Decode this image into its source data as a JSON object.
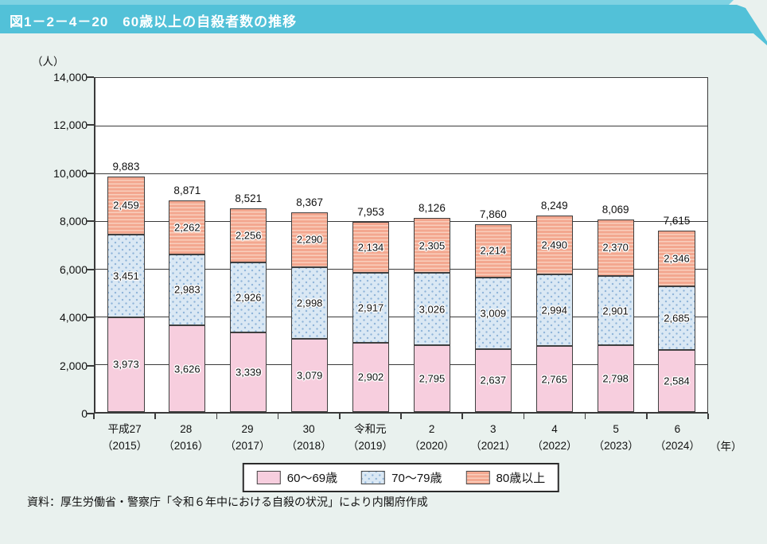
{
  "header": {
    "title": "図1－2－4－20　60歳以上の自殺者数の推移"
  },
  "y_axis": {
    "unit_label": "（人）",
    "max": 14000,
    "tick_interval": 2000
  },
  "x_axis": {
    "unit_label": "（年）"
  },
  "source": "資料：厚生労働省・警察庁「令和６年中における自殺の状況」により内閣府作成",
  "colors": {
    "banner": "#52c1d8",
    "banner_strip": "#7ed2e2",
    "page_bg": "#e9f1ee",
    "plot_bg": "#ffffff",
    "axis_line": "#3a3a3a",
    "age60_fill": "#f7cede",
    "age70_fill": "#dae8f4",
    "age70_dot": "#8fb4d9",
    "age80_fill": "#f3a78f",
    "age80_stripe": "#f9cfbd"
  },
  "chart_data": {
    "type": "bar",
    "stacked": true,
    "title": "図1－2－4－20　60歳以上の自殺者数の推移",
    "xlabel": "年",
    "ylabel": "人",
    "ylim": [
      0,
      14000
    ],
    "ytick_interval": 2000,
    "grid": true,
    "legend_position": "bottom",
    "stack_order": "bottom-to-top",
    "categories": [
      [
        "平成27",
        "（2015）"
      ],
      [
        "28",
        "（2016）"
      ],
      [
        "29",
        "（2017）"
      ],
      [
        "30",
        "（2018）"
      ],
      [
        "令和元",
        "（2019）"
      ],
      [
        "2",
        "（2020）"
      ],
      [
        "3",
        "（2021）"
      ],
      [
        "4",
        "（2022）"
      ],
      [
        "5",
        "（2023）"
      ],
      [
        "6",
        "（2024）"
      ]
    ],
    "series": [
      {
        "name": "60～69歳",
        "class": "age60",
        "values": [
          3973,
          3626,
          3339,
          3079,
          2902,
          2795,
          2637,
          2765,
          2798,
          2584
        ]
      },
      {
        "name": "70～79歳",
        "class": "age70",
        "values": [
          3451,
          2983,
          2926,
          2998,
          2917,
          3026,
          3009,
          2994,
          2901,
          2685
        ]
      },
      {
        "name": "80歳以上",
        "class": "age80",
        "values": [
          2459,
          2262,
          2256,
          2290,
          2134,
          2305,
          2214,
          2490,
          2370,
          2346
        ]
      }
    ],
    "totals": [
      9883,
      8871,
      8521,
      8367,
      7953,
      8126,
      7860,
      8249,
      8069,
      7615
    ]
  }
}
